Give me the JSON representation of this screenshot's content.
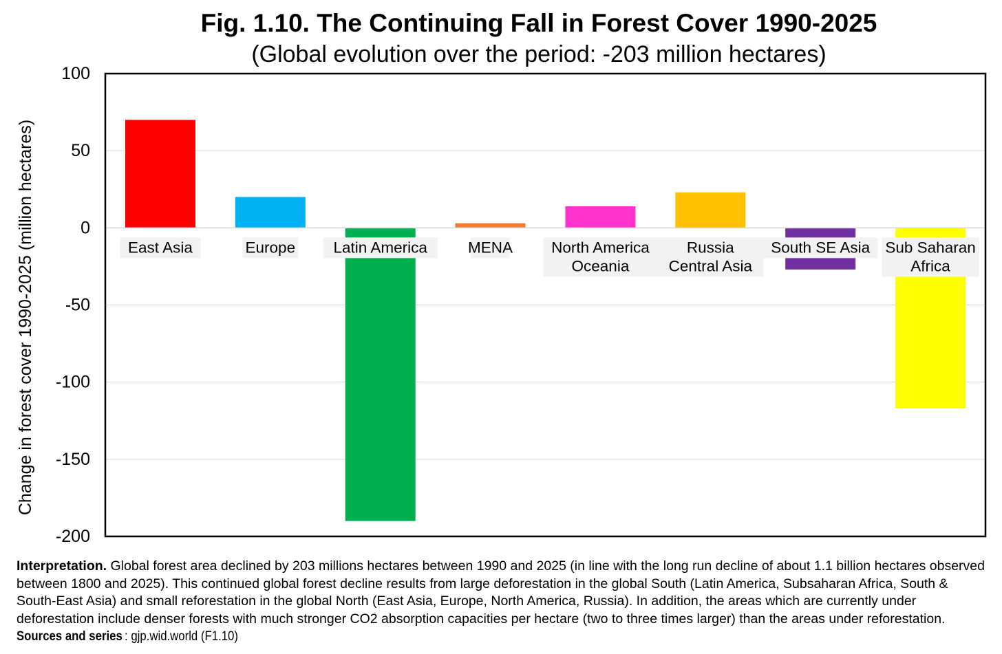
{
  "chart_data": {
    "type": "bar",
    "title": "Fig. 1.10. The Continuing Fall in Forest Cover 1990-2025",
    "subtitle": "(Global evolution over the period: -203 million hectares)",
    "ylabel": "Change in forest cover 1990-2025 (million hectares)",
    "xlabel": "",
    "ylim": [
      -200,
      100
    ],
    "yticks": [
      "100",
      "50",
      "0",
      "-50",
      "-100",
      "-150",
      "-200"
    ],
    "grid": true,
    "legend": "none",
    "categories": [
      [
        "East Asia"
      ],
      [
        "Europe"
      ],
      [
        "Latin America"
      ],
      [
        "MENA"
      ],
      [
        "North America",
        "Oceania"
      ],
      [
        "Russia",
        "Central Asia"
      ],
      [
        "South SE Asia"
      ],
      [
        "Sub Saharan",
        "Africa"
      ]
    ],
    "values": [
      70,
      20,
      -190,
      3,
      14,
      23,
      -27,
      -117
    ],
    "colors": [
      "#ff0000",
      "#00b0f0",
      "#00b050",
      "#ed7d31",
      "#ff33cc",
      "#ffc000",
      "#7030a0",
      "#ffff00"
    ]
  },
  "interpretation": {
    "lead": "Interpretation.",
    "text": " Global forest area declined by 203 millions hectares between 1990 and 2025 (in line with the long run decline of about 1.1 billion hectares observed between 1800 and 2025). This continued global forest decline results from large deforestation in the global South (Latin America, Subsaharan Africa, South & South-East Asia) and small reforestation in the global North (East Asia, Europe, North America, Russia). In addition, the areas which are currently under deforestation include denser forests with much stronger CO2 absorption capacities per hectare (two to three times larger) than the areas under reforestation. ",
    "sources_label": "Sources and series",
    "sources_text": ": gjp.wid.world (F1.10)"
  }
}
